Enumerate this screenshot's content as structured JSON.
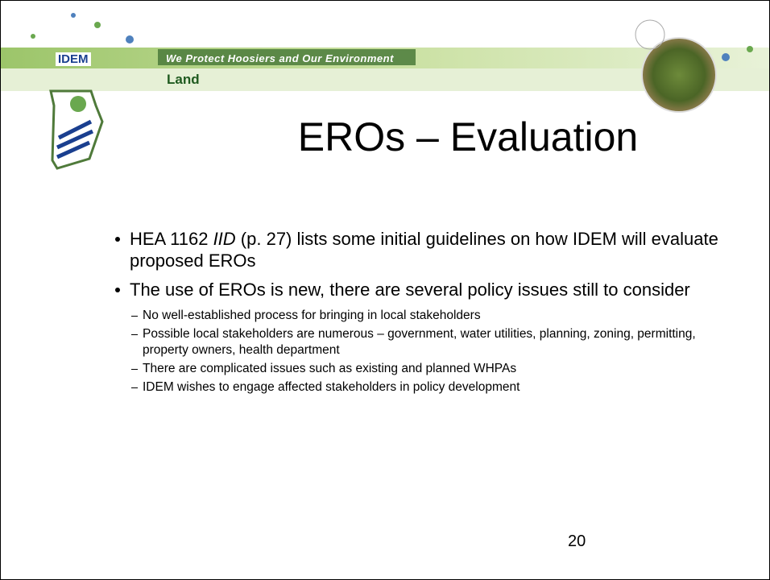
{
  "header": {
    "logo": "IDEM",
    "tagline": "We Protect Hoosiers and Our Environment",
    "section": "Land"
  },
  "title": "EROs – Evaluation",
  "bullets": [
    {
      "parts": [
        "HEA 1162 ",
        "IID",
        " (p. 27) lists some initial guidelines on how IDEM will evaluate proposed EROs"
      ]
    },
    {
      "text": "The use of EROs is new, there are several policy issues still to consider",
      "sub": [
        "No well-established process for bringing in local stakeholders",
        "Possible local stakeholders are numerous – government, water utilities, planning, zoning, permitting, property owners, health department",
        "There are complicated issues such as existing and planned WHPAs",
        "IDEM wishes to engage affected stakeholders in policy development"
      ]
    }
  ],
  "page_number": "20"
}
